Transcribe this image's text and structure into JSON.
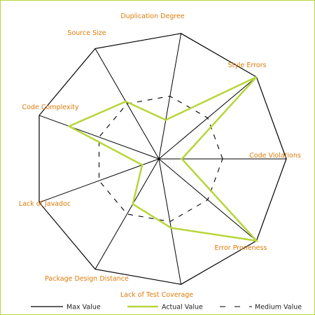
{
  "colors": {
    "border": "#b6d63a",
    "max_line": "#000000",
    "actual_line": "#b6d63a",
    "medium_line": "#000000",
    "label": "#e07b0a",
    "background": "#ffffff"
  },
  "chart_data": {
    "type": "radar",
    "title": "",
    "axes": [
      "Code Violations",
      "Style Errors",
      "Duplication Degree",
      "Source Size",
      "Code Complexity",
      "Lack of Javadoc",
      "Package Design Distance",
      "Lack of Test Coverage",
      "Error Proneness"
    ],
    "axis_angles_deg": [
      0,
      40,
      80,
      120,
      160,
      200,
      240,
      280,
      320
    ],
    "range": [
      0,
      1
    ],
    "series": [
      {
        "name": "Max Value",
        "style": "solid-black",
        "values": [
          1,
          1,
          1,
          1,
          1,
          1,
          1,
          1,
          1
        ]
      },
      {
        "name": "Actual Value",
        "style": "solid-green",
        "values": [
          0.18,
          1.0,
          0.31,
          0.52,
          0.75,
          0.14,
          0.41,
          0.55,
          1.0
        ]
      },
      {
        "name": "Medium Value",
        "style": "dashed-black",
        "values": [
          0.5,
          0.5,
          0.5,
          0.5,
          0.5,
          0.5,
          0.5,
          0.5,
          0.5
        ]
      }
    ],
    "legend": {
      "position": "bottom",
      "items": [
        "Max Value",
        "Actual Value",
        "Medium Value"
      ]
    },
    "grid": false
  }
}
